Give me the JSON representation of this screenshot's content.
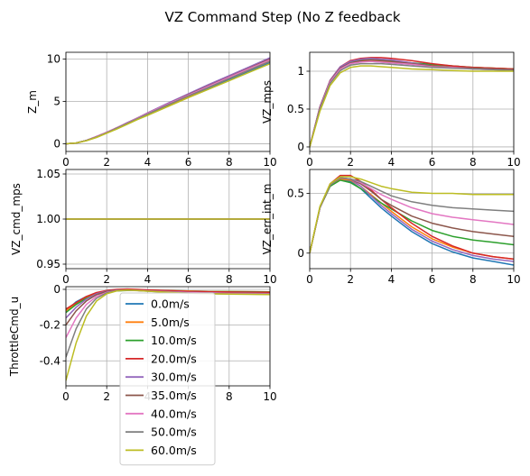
{
  "figure_title": "VZ Command Step (No Z feedback",
  "colors": {
    "series": [
      "#1f77b4",
      "#ff7f0e",
      "#2ca02c",
      "#d62728",
      "#9467bd",
      "#8c564b",
      "#e377c2",
      "#7f7f7f",
      "#bcbd22"
    ],
    "grid": "#b0b0b0",
    "axes": "#000000"
  },
  "legend": {
    "placement": "overlapping bottom-left subplot, lower center",
    "entries": [
      "0.0m/s",
      "5.0m/s",
      "10.0m/s",
      "20.0m/s",
      "30.0m/s",
      "35.0m/s",
      "40.0m/s",
      "50.0m/s",
      "60.0m/s"
    ]
  },
  "chart_data": [
    {
      "id": "z_m",
      "type": "line",
      "ylabel": "Z_m",
      "xlim": [
        0,
        10
      ],
      "ylim": [
        -0.9,
        10.8
      ],
      "xticks": [
        0,
        2,
        4,
        6,
        8,
        10
      ],
      "yticks": [
        0,
        5,
        10
      ],
      "grid": true,
      "x": [
        0,
        0.5,
        1,
        1.5,
        2,
        2.5,
        3,
        3.5,
        4,
        5,
        6,
        7,
        8,
        9,
        10
      ],
      "series": [
        {
          "name": "0.0m/s",
          "values": [
            0,
            0.1,
            0.4,
            0.8,
            1.3,
            1.8,
            2.35,
            2.9,
            3.45,
            4.5,
            5.55,
            6.55,
            7.6,
            8.6,
            9.6
          ]
        },
        {
          "name": "5.0m/s",
          "values": [
            0,
            0.1,
            0.4,
            0.8,
            1.3,
            1.8,
            2.35,
            2.9,
            3.45,
            4.55,
            5.6,
            6.65,
            7.7,
            8.7,
            9.75
          ]
        },
        {
          "name": "10.0m/s",
          "values": [
            0,
            0.1,
            0.4,
            0.8,
            1.3,
            1.85,
            2.4,
            2.95,
            3.5,
            4.6,
            5.7,
            6.75,
            7.8,
            8.85,
            9.9
          ]
        },
        {
          "name": "20.0m/s",
          "values": [
            0,
            0.1,
            0.4,
            0.85,
            1.35,
            1.9,
            2.45,
            3.05,
            3.6,
            4.75,
            5.85,
            6.95,
            8.0,
            9.05,
            10.1
          ]
        },
        {
          "name": "30.0m/s",
          "values": [
            0,
            0.1,
            0.4,
            0.85,
            1.35,
            1.9,
            2.5,
            3.05,
            3.65,
            4.8,
            5.9,
            7.0,
            8.05,
            9.1,
            10.15
          ]
        },
        {
          "name": "35.0m/s",
          "values": [
            0,
            0.1,
            0.4,
            0.85,
            1.35,
            1.9,
            2.45,
            3.0,
            3.6,
            4.7,
            5.8,
            6.85,
            7.9,
            8.95,
            10.0
          ]
        },
        {
          "name": "40.0m/s",
          "values": [
            0,
            0.1,
            0.4,
            0.85,
            1.35,
            1.9,
            2.45,
            3.0,
            3.6,
            4.7,
            5.75,
            6.8,
            7.85,
            8.9,
            9.9
          ]
        },
        {
          "name": "50.0m/s",
          "values": [
            0,
            0.1,
            0.4,
            0.8,
            1.3,
            1.85,
            2.4,
            2.95,
            3.5,
            4.6,
            5.65,
            6.65,
            7.7,
            8.7,
            9.7
          ]
        },
        {
          "name": "60.0m/s",
          "values": [
            0,
            0.1,
            0.35,
            0.75,
            1.25,
            1.75,
            2.3,
            2.85,
            3.35,
            4.4,
            5.45,
            6.45,
            7.45,
            8.45,
            9.45
          ]
        }
      ]
    },
    {
      "id": "vz_mps",
      "type": "line",
      "ylabel": "VZ_mps",
      "xlim": [
        0,
        10
      ],
      "ylim": [
        -0.06,
        1.25
      ],
      "xticks": [
        0,
        2,
        4,
        6,
        8,
        10
      ],
      "yticks": [
        0.0,
        0.5,
        1.0
      ],
      "grid": true,
      "x": [
        0,
        0.5,
        1,
        1.5,
        2,
        2.5,
        3,
        3.5,
        4,
        5,
        6,
        7,
        8,
        9,
        10
      ],
      "series": [
        {
          "name": "0.0m/s",
          "values": [
            0,
            0.52,
            0.86,
            1.03,
            1.1,
            1.13,
            1.13,
            1.12,
            1.11,
            1.09,
            1.07,
            1.05,
            1.04,
            1.03,
            1.02
          ]
        },
        {
          "name": "5.0m/s",
          "values": [
            0,
            0.52,
            0.86,
            1.03,
            1.11,
            1.14,
            1.14,
            1.13,
            1.12,
            1.1,
            1.08,
            1.06,
            1.05,
            1.04,
            1.03
          ]
        },
        {
          "name": "10.0m/s",
          "values": [
            0,
            0.52,
            0.87,
            1.04,
            1.12,
            1.15,
            1.15,
            1.15,
            1.14,
            1.11,
            1.09,
            1.07,
            1.05,
            1.04,
            1.03
          ]
        },
        {
          "name": "20.0m/s",
          "values": [
            0,
            0.53,
            0.88,
            1.06,
            1.14,
            1.17,
            1.18,
            1.18,
            1.17,
            1.14,
            1.1,
            1.07,
            1.05,
            1.04,
            1.03
          ]
        },
        {
          "name": "30.0m/s",
          "values": [
            0,
            0.53,
            0.88,
            1.06,
            1.13,
            1.16,
            1.17,
            1.16,
            1.15,
            1.11,
            1.07,
            1.05,
            1.03,
            1.02,
            1.01
          ]
        },
        {
          "name": "35.0m/s",
          "values": [
            0,
            0.52,
            0.87,
            1.04,
            1.11,
            1.14,
            1.15,
            1.14,
            1.13,
            1.1,
            1.07,
            1.05,
            1.04,
            1.03,
            1.02
          ]
        },
        {
          "name": "40.0m/s",
          "values": [
            0,
            0.51,
            0.86,
            1.03,
            1.1,
            1.12,
            1.13,
            1.12,
            1.11,
            1.09,
            1.06,
            1.05,
            1.03,
            1.02,
            1.01
          ]
        },
        {
          "name": "50.0m/s",
          "values": [
            0,
            0.5,
            0.84,
            1.01,
            1.08,
            1.1,
            1.1,
            1.1,
            1.09,
            1.07,
            1.05,
            1.04,
            1.03,
            1.02,
            1.01
          ]
        },
        {
          "name": "60.0m/s",
          "values": [
            0,
            0.47,
            0.81,
            0.98,
            1.05,
            1.07,
            1.07,
            1.06,
            1.05,
            1.03,
            1.02,
            1.01,
            1.0,
            1.0,
            1.0
          ]
        }
      ]
    },
    {
      "id": "vz_cmd_mps",
      "type": "line",
      "ylabel": "VZ_cmd_mps",
      "xlim": [
        0,
        10
      ],
      "ylim": [
        0.945,
        1.055
      ],
      "xticks": [
        0,
        2,
        4,
        6,
        8,
        10
      ],
      "yticks": [
        0.95,
        1.0,
        1.05
      ],
      "ytick_labels": [
        "0.95",
        "1.00",
        "1.05"
      ],
      "grid": true,
      "x": [
        0,
        10
      ],
      "series": [
        {
          "name": "0.0m/s",
          "values": [
            1.0,
            1.0
          ]
        },
        {
          "name": "5.0m/s",
          "values": [
            1.0,
            1.0
          ]
        },
        {
          "name": "10.0m/s",
          "values": [
            1.0,
            1.0
          ]
        },
        {
          "name": "20.0m/s",
          "values": [
            1.0,
            1.0
          ]
        },
        {
          "name": "30.0m/s",
          "values": [
            1.0,
            1.0
          ]
        },
        {
          "name": "35.0m/s",
          "values": [
            1.0,
            1.0
          ]
        },
        {
          "name": "40.0m/s",
          "values": [
            1.0,
            1.0
          ]
        },
        {
          "name": "50.0m/s",
          "values": [
            1.0,
            1.0
          ]
        },
        {
          "name": "60.0m/s",
          "values": [
            1.0,
            1.0
          ]
        }
      ]
    },
    {
      "id": "vz_err_int_m",
      "type": "line",
      "ylabel": "VZ_err_int_m",
      "xlim": [
        0,
        10
      ],
      "ylim": [
        -0.13,
        0.7
      ],
      "xticks": [
        0,
        2,
        4,
        6,
        8,
        10
      ],
      "yticks": [
        0.0,
        0.5
      ],
      "grid": true,
      "x": [
        0,
        0.5,
        1,
        1.5,
        2,
        2.5,
        3,
        3.5,
        4,
        5,
        6,
        7,
        8,
        9,
        10
      ],
      "series": [
        {
          "name": "0.0m/s",
          "values": [
            0,
            0.38,
            0.56,
            0.62,
            0.6,
            0.54,
            0.46,
            0.38,
            0.31,
            0.18,
            0.08,
            0.01,
            -0.04,
            -0.07,
            -0.1
          ]
        },
        {
          "name": "5.0m/s",
          "values": [
            0,
            0.38,
            0.56,
            0.62,
            0.61,
            0.56,
            0.49,
            0.42,
            0.35,
            0.22,
            0.12,
            0.05,
            0.0,
            -0.03,
            -0.05
          ]
        },
        {
          "name": "10.0m/s",
          "values": [
            0,
            0.38,
            0.56,
            0.61,
            0.59,
            0.54,
            0.48,
            0.42,
            0.37,
            0.27,
            0.19,
            0.14,
            0.11,
            0.09,
            0.07
          ]
        },
        {
          "name": "20.0m/s",
          "values": [
            0,
            0.38,
            0.58,
            0.65,
            0.65,
            0.6,
            0.53,
            0.45,
            0.38,
            0.25,
            0.14,
            0.06,
            0.0,
            -0.03,
            -0.05
          ]
        },
        {
          "name": "30.0m/s",
          "values": [
            0,
            0.38,
            0.57,
            0.63,
            0.62,
            0.56,
            0.48,
            0.4,
            0.33,
            0.2,
            0.1,
            0.03,
            -0.02,
            -0.05,
            -0.07
          ]
        },
        {
          "name": "35.0m/s",
          "values": [
            0,
            0.38,
            0.57,
            0.63,
            0.62,
            0.58,
            0.52,
            0.45,
            0.4,
            0.31,
            0.25,
            0.21,
            0.18,
            0.16,
            0.14
          ]
        },
        {
          "name": "40.0m/s",
          "values": [
            0,
            0.38,
            0.57,
            0.63,
            0.62,
            0.59,
            0.54,
            0.49,
            0.45,
            0.38,
            0.33,
            0.3,
            0.28,
            0.26,
            0.24
          ]
        },
        {
          "name": "50.0m/s",
          "values": [
            0,
            0.38,
            0.57,
            0.63,
            0.62,
            0.6,
            0.56,
            0.52,
            0.48,
            0.43,
            0.4,
            0.38,
            0.37,
            0.36,
            0.35
          ]
        },
        {
          "name": "60.0m/s",
          "values": [
            0,
            0.39,
            0.58,
            0.64,
            0.64,
            0.62,
            0.59,
            0.56,
            0.54,
            0.51,
            0.5,
            0.5,
            0.49,
            0.49,
            0.49
          ]
        }
      ]
    },
    {
      "id": "throttlecmd_u",
      "type": "line",
      "ylabel": "ThrottleCmd_u",
      "xlim": [
        0,
        10
      ],
      "ylim": [
        -0.54,
        0.015
      ],
      "xticks": [
        0,
        2,
        4,
        6,
        8,
        10
      ],
      "yticks": [
        -0.4,
        -0.2,
        0.0
      ],
      "grid": true,
      "x": [
        0,
        0.5,
        1,
        1.5,
        2,
        2.5,
        3,
        3.5,
        4,
        5,
        6,
        7,
        8,
        9,
        10
      ],
      "series": [
        {
          "name": "0.0m/s",
          "values": [
            -0.12,
            -0.07,
            -0.04,
            -0.02,
            -0.01,
            -0.005,
            -0.003,
            -0.004,
            -0.005,
            -0.007,
            -0.009,
            -0.011,
            -0.012,
            -0.013,
            -0.014
          ]
        },
        {
          "name": "5.0m/s",
          "values": [
            -0.12,
            -0.08,
            -0.045,
            -0.025,
            -0.012,
            -0.006,
            -0.004,
            -0.004,
            -0.005,
            -0.007,
            -0.009,
            -0.011,
            -0.012,
            -0.013,
            -0.014
          ]
        },
        {
          "name": "10.0m/s",
          "values": [
            -0.13,
            -0.085,
            -0.05,
            -0.028,
            -0.014,
            -0.008,
            -0.006,
            -0.006,
            -0.007,
            -0.009,
            -0.011,
            -0.012,
            -0.013,
            -0.014,
            -0.015
          ]
        },
        {
          "name": "20.0m/s",
          "values": [
            -0.11,
            -0.075,
            -0.04,
            -0.018,
            -0.006,
            0.0,
            0.002,
            0.0,
            -0.003,
            -0.007,
            -0.011,
            -0.013,
            -0.015,
            -0.016,
            -0.017
          ]
        },
        {
          "name": "30.0m/s",
          "values": [
            -0.16,
            -0.1,
            -0.055,
            -0.025,
            -0.01,
            -0.004,
            -0.003,
            -0.005,
            -0.008,
            -0.013,
            -0.017,
            -0.02,
            -0.022,
            -0.023,
            -0.024
          ]
        },
        {
          "name": "35.0m/s",
          "values": [
            -0.2,
            -0.12,
            -0.065,
            -0.03,
            -0.012,
            -0.005,
            -0.004,
            -0.006,
            -0.009,
            -0.014,
            -0.018,
            -0.021,
            -0.023,
            -0.024,
            -0.025
          ]
        },
        {
          "name": "40.0m/s",
          "values": [
            -0.27,
            -0.16,
            -0.085,
            -0.04,
            -0.017,
            -0.007,
            -0.004,
            -0.006,
            -0.009,
            -0.014,
            -0.018,
            -0.021,
            -0.023,
            -0.024,
            -0.025
          ]
        },
        {
          "name": "50.0m/s",
          "values": [
            -0.38,
            -0.22,
            -0.11,
            -0.05,
            -0.02,
            -0.008,
            -0.005,
            -0.007,
            -0.01,
            -0.016,
            -0.021,
            -0.024,
            -0.026,
            -0.027,
            -0.028
          ]
        },
        {
          "name": "60.0m/s",
          "values": [
            -0.51,
            -0.3,
            -0.15,
            -0.065,
            -0.025,
            -0.008,
            -0.004,
            -0.006,
            -0.01,
            -0.017,
            -0.022,
            -0.025,
            -0.027,
            -0.028,
            -0.029
          ]
        }
      ]
    }
  ]
}
